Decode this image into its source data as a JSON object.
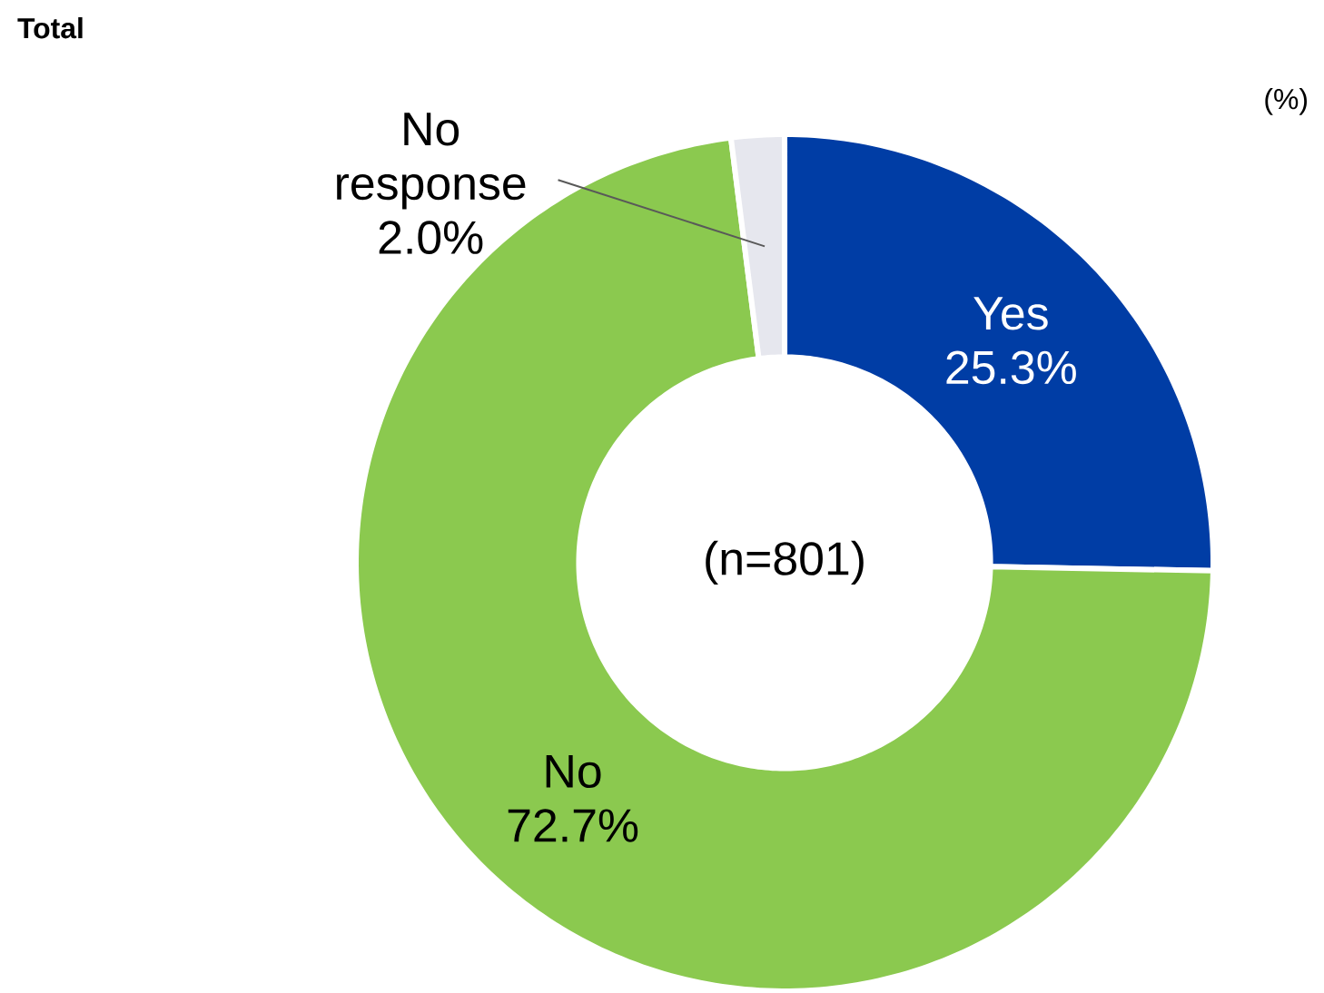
{
  "chart_data": {
    "type": "donut",
    "title": "Total",
    "categories": [
      "Yes",
      "No",
      "No response"
    ],
    "values": [
      25.3,
      72.7,
      2.0
    ],
    "value_labels": [
      "25.3%",
      "72.7%",
      "2.0%"
    ],
    "colors": [
      "#003da5",
      "#8bc94f",
      "#e6e7ee"
    ],
    "annotations": [
      "(%)",
      "(n=801)"
    ]
  }
}
